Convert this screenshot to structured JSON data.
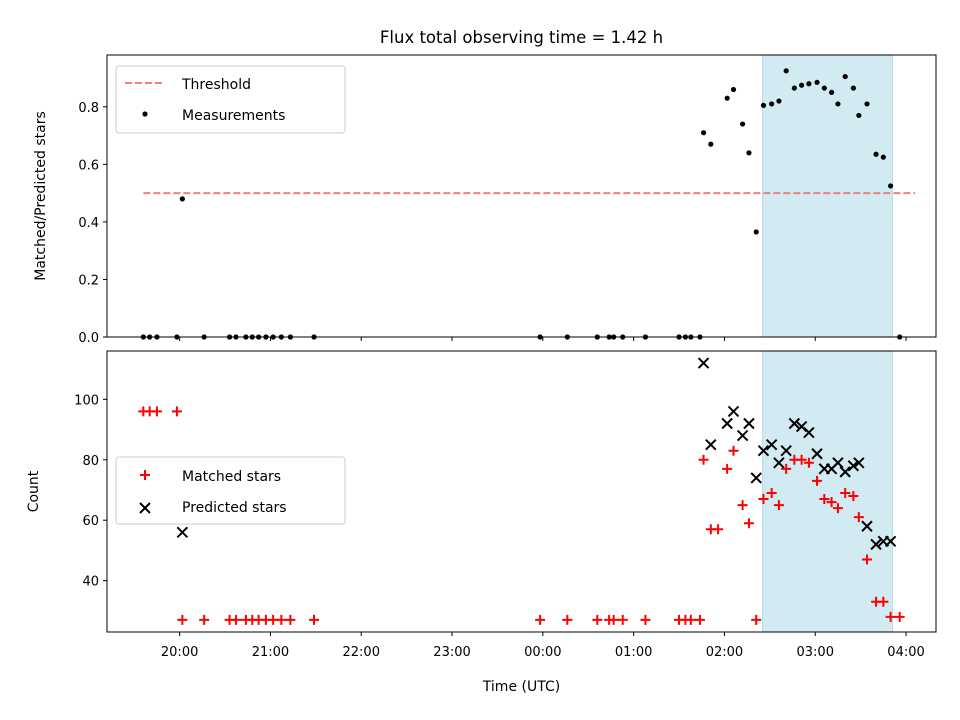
{
  "chart_data": [
    {
      "type": "scatter",
      "title": "Flux total observing time = 1.42 h",
      "xlabel": "",
      "ylabel": "Matched/Predicted stars",
      "x_unit": "hours (UTC, continuing past midnight)",
      "xlim": [
        19.2,
        28.33
      ],
      "ylim": [
        0.0,
        0.98
      ],
      "yticks": [
        0.0,
        0.2,
        0.4,
        0.6,
        0.8
      ],
      "ytick_labels": [
        "0.0",
        "0.2",
        "0.4",
        "0.6",
        "0.8"
      ],
      "legend_position": "upper-left",
      "threshold": {
        "name": "Threshold",
        "y": 0.5,
        "x_range": [
          19.6,
          28.1
        ],
        "color": "#f08080"
      },
      "shaded_interval": {
        "x_range": [
          26.42,
          27.85
        ],
        "color": "#add8e6"
      },
      "series": [
        {
          "name": "Measurements",
          "color": "#000000",
          "points": [
            [
              19.6,
              0
            ],
            [
              19.67,
              0
            ],
            [
              19.75,
              0
            ],
            [
              19.97,
              0
            ],
            [
              20.03,
              0.48
            ],
            [
              20.27,
              0
            ],
            [
              20.55,
              0
            ],
            [
              20.62,
              0
            ],
            [
              20.73,
              0
            ],
            [
              20.8,
              0
            ],
            [
              20.87,
              0
            ],
            [
              20.95,
              0
            ],
            [
              21.03,
              0
            ],
            [
              21.12,
              0
            ],
            [
              21.22,
              0
            ],
            [
              21.48,
              0
            ],
            [
              23.97,
              0
            ],
            [
              24.27,
              0
            ],
            [
              24.6,
              0
            ],
            [
              24.73,
              0
            ],
            [
              24.78,
              0
            ],
            [
              24.88,
              0
            ],
            [
              25.13,
              0
            ],
            [
              25.5,
              0
            ],
            [
              25.57,
              0
            ],
            [
              25.63,
              0
            ],
            [
              25.73,
              0
            ],
            [
              25.77,
              0.71
            ],
            [
              25.85,
              0.67
            ],
            [
              26.03,
              0.83
            ],
            [
              26.1,
              0.86
            ],
            [
              26.2,
              0.74
            ],
            [
              26.27,
              0.64
            ],
            [
              26.35,
              0.365
            ],
            [
              26.43,
              0.805
            ],
            [
              26.52,
              0.81
            ],
            [
              26.6,
              0.82
            ],
            [
              26.68,
              0.925
            ],
            [
              26.77,
              0.865
            ],
            [
              26.85,
              0.875
            ],
            [
              26.93,
              0.88
            ],
            [
              27.02,
              0.885
            ],
            [
              27.1,
              0.865
            ],
            [
              27.18,
              0.85
            ],
            [
              27.25,
              0.81
            ],
            [
              27.33,
              0.905
            ],
            [
              27.42,
              0.865
            ],
            [
              27.48,
              0.77
            ],
            [
              27.57,
              0.81
            ],
            [
              27.67,
              0.635
            ],
            [
              27.75,
              0.625
            ],
            [
              27.83,
              0.525
            ],
            [
              27.93,
              0.0
            ]
          ]
        }
      ]
    },
    {
      "type": "scatter",
      "title": "",
      "xlabel": "Time (UTC)",
      "ylabel": "Count",
      "x_unit": "hours (UTC, continuing past midnight)",
      "xlim": [
        19.2,
        28.33
      ],
      "ylim": [
        23,
        116
      ],
      "yticks": [
        40,
        60,
        80,
        100
      ],
      "ytick_labels": [
        "40",
        "60",
        "80",
        "100"
      ],
      "xticks": [
        20,
        21,
        22,
        23,
        24,
        25,
        26,
        27,
        28
      ],
      "xtick_labels": [
        "20:00",
        "21:00",
        "22:00",
        "23:00",
        "00:00",
        "01:00",
        "02:00",
        "03:00",
        "04:00"
      ],
      "legend_position": "center-left",
      "shaded_interval": {
        "x_range": [
          26.42,
          27.85
        ],
        "color": "#add8e6"
      },
      "series": [
        {
          "name": "Matched stars",
          "marker": "plus",
          "color": "#ff0000",
          "points": [
            [
              19.6,
              96
            ],
            [
              19.67,
              96
            ],
            [
              19.75,
              96
            ],
            [
              19.97,
              96
            ],
            [
              20.03,
              27
            ],
            [
              20.27,
              27
            ],
            [
              20.55,
              27
            ],
            [
              20.62,
              27
            ],
            [
              20.73,
              27
            ],
            [
              20.8,
              27
            ],
            [
              20.87,
              27
            ],
            [
              20.95,
              27
            ],
            [
              21.03,
              27
            ],
            [
              21.12,
              27
            ],
            [
              21.22,
              27
            ],
            [
              21.48,
              27
            ],
            [
              23.97,
              27
            ],
            [
              24.27,
              27
            ],
            [
              24.6,
              27
            ],
            [
              24.73,
              27
            ],
            [
              24.78,
              27
            ],
            [
              24.88,
              27
            ],
            [
              25.13,
              27
            ],
            [
              25.5,
              27
            ],
            [
              25.57,
              27
            ],
            [
              25.63,
              27
            ],
            [
              25.73,
              27
            ],
            [
              25.77,
              80
            ],
            [
              25.85,
              57
            ],
            [
              25.93,
              57
            ],
            [
              26.03,
              77
            ],
            [
              26.1,
              83
            ],
            [
              26.2,
              65
            ],
            [
              26.27,
              59
            ],
            [
              26.35,
              27
            ],
            [
              26.43,
              67
            ],
            [
              26.52,
              69
            ],
            [
              26.6,
              65
            ],
            [
              26.68,
              77
            ],
            [
              26.77,
              80
            ],
            [
              26.85,
              80
            ],
            [
              26.93,
              79
            ],
            [
              27.02,
              73
            ],
            [
              27.1,
              67
            ],
            [
              27.18,
              66
            ],
            [
              27.25,
              64
            ],
            [
              27.33,
              69
            ],
            [
              27.42,
              68
            ],
            [
              27.48,
              61
            ],
            [
              27.57,
              47
            ],
            [
              27.67,
              33
            ],
            [
              27.75,
              33
            ],
            [
              27.83,
              28
            ],
            [
              27.93,
              28
            ]
          ]
        },
        {
          "name": "Predicted stars",
          "marker": "x",
          "color": "#000000",
          "points": [
            [
              20.03,
              56
            ],
            [
              25.77,
              112
            ],
            [
              25.85,
              85
            ],
            [
              26.03,
              92
            ],
            [
              26.1,
              96
            ],
            [
              26.2,
              88
            ],
            [
              26.27,
              92
            ],
            [
              26.35,
              74
            ],
            [
              26.43,
              83
            ],
            [
              26.52,
              85
            ],
            [
              26.6,
              79
            ],
            [
              26.68,
              83
            ],
            [
              26.77,
              92
            ],
            [
              26.85,
              91
            ],
            [
              26.93,
              89
            ],
            [
              27.02,
              82
            ],
            [
              27.1,
              77
            ],
            [
              27.18,
              77
            ],
            [
              27.25,
              79
            ],
            [
              27.33,
              76
            ],
            [
              27.42,
              78
            ],
            [
              27.48,
              79
            ],
            [
              27.57,
              58
            ],
            [
              27.67,
              52
            ],
            [
              27.75,
              53
            ],
            [
              27.83,
              53
            ]
          ]
        }
      ]
    }
  ]
}
